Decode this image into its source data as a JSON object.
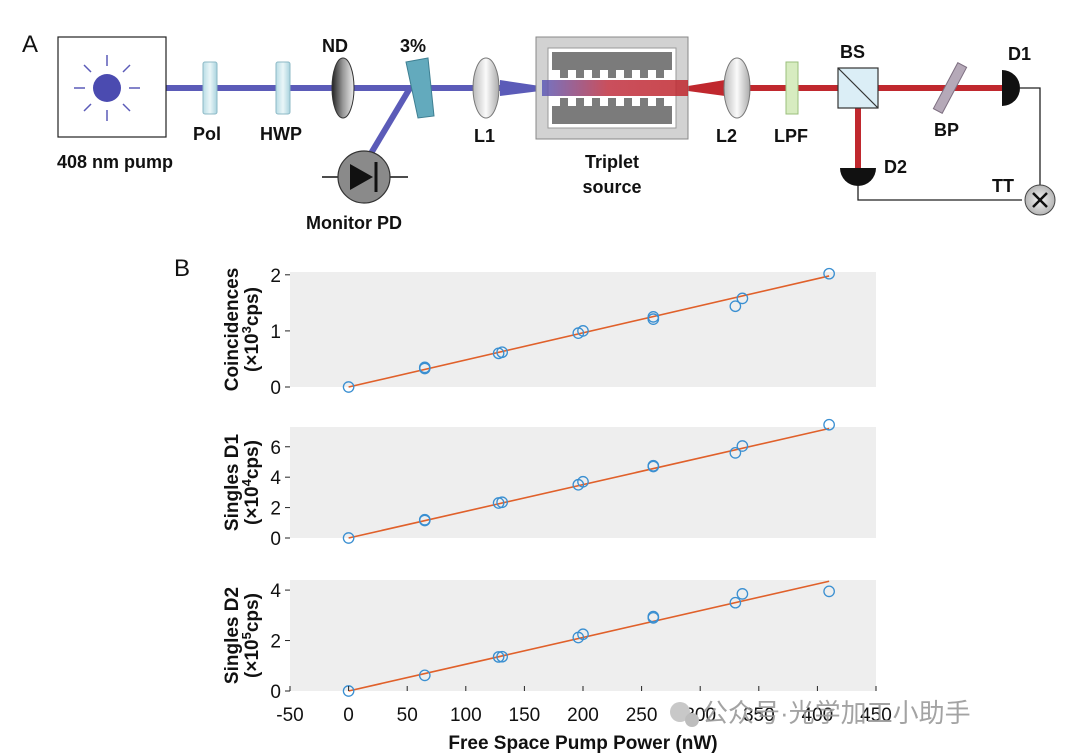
{
  "panel_a": {
    "label": "A",
    "components": {
      "pump": "408 nm pump",
      "pol": "Pol",
      "hwp": "HWP",
      "nd": "ND",
      "splitter": "3%",
      "monitor": "Monitor PD",
      "l1": "L1",
      "source_line1": "Triplet",
      "source_line2": "source",
      "l2": "L2",
      "lpf": "LPF",
      "bs": "BS",
      "bp": "BP",
      "d1": "D1",
      "d2": "D2",
      "tt": "TT"
    },
    "colors": {
      "pump_beam": "#5b5bb8",
      "output_beam": "#c0282e",
      "lpf_filter": "#d7ecc0"
    }
  },
  "panel_b": {
    "label": "B"
  },
  "watermark": "公众号·光学加工小助手",
  "chart_data": [
    {
      "type": "scatter",
      "id": "coincidences",
      "ylabel_line1": "Coincidences",
      "ylabel_line2_prefix": "(×10",
      "ylabel_exp": "3",
      "ylabel_line2_suffix": "cps)",
      "xlim": [
        -50,
        450
      ],
      "ylim": [
        0,
        2.05
      ],
      "yticks": [
        0,
        1,
        2
      ],
      "x": [
        0,
        65,
        65,
        128,
        131,
        196,
        200,
        260,
        260,
        330,
        336,
        410
      ],
      "y": [
        0.0,
        0.33,
        0.35,
        0.6,
        0.62,
        0.96,
        1.0,
        1.21,
        1.25,
        1.44,
        1.58,
        2.02
      ],
      "fit": [
        [
          0,
          0.0
        ],
        [
          410,
          1.98
        ]
      ],
      "marker_color": "#3a8fd1",
      "fit_color": "#e0602a",
      "grid": false
    },
    {
      "type": "scatter",
      "id": "singles_d1",
      "ylabel_line1": "Singles D1",
      "ylabel_line2_prefix": "(×10",
      "ylabel_exp": "4",
      "ylabel_line2_suffix": "cps)",
      "xlim": [
        -50,
        450
      ],
      "ylim": [
        0,
        7.3
      ],
      "yticks": [
        0,
        2,
        4,
        6
      ],
      "x": [
        0,
        65,
        65,
        128,
        131,
        196,
        200,
        260,
        260,
        330,
        336,
        410
      ],
      "y": [
        0.0,
        1.15,
        1.2,
        2.3,
        2.35,
        3.5,
        3.7,
        4.7,
        4.75,
        5.6,
        6.05,
        7.45
      ],
      "fit": [
        [
          0,
          0.0
        ],
        [
          410,
          7.2
        ]
      ],
      "marker_color": "#3a8fd1",
      "fit_color": "#e0602a",
      "grid": false
    },
    {
      "type": "scatter",
      "id": "singles_d2",
      "ylabel_line1": "Singles D2",
      "ylabel_line2_prefix": "(×10",
      "ylabel_exp": "5",
      "ylabel_line2_suffix": "cps)",
      "xlabel": "Free Space Pump Power (nW)",
      "xlim": [
        -50,
        450
      ],
      "xticks": [
        -50,
        0,
        50,
        100,
        150,
        200,
        250,
        300,
        350,
        400,
        450
      ],
      "ylim": [
        0,
        4.4
      ],
      "yticks": [
        0,
        2,
        4
      ],
      "x": [
        0,
        65,
        128,
        131,
        196,
        200,
        260,
        260,
        330,
        336,
        410
      ],
      "y": [
        0.0,
        0.62,
        1.35,
        1.36,
        2.12,
        2.25,
        2.9,
        2.95,
        3.5,
        3.85,
        3.95
      ],
      "fit": [
        [
          0,
          0.0
        ],
        [
          410,
          4.35
        ]
      ],
      "marker_color": "#3a8fd1",
      "fit_color": "#e0602a",
      "grid": false
    }
  ]
}
